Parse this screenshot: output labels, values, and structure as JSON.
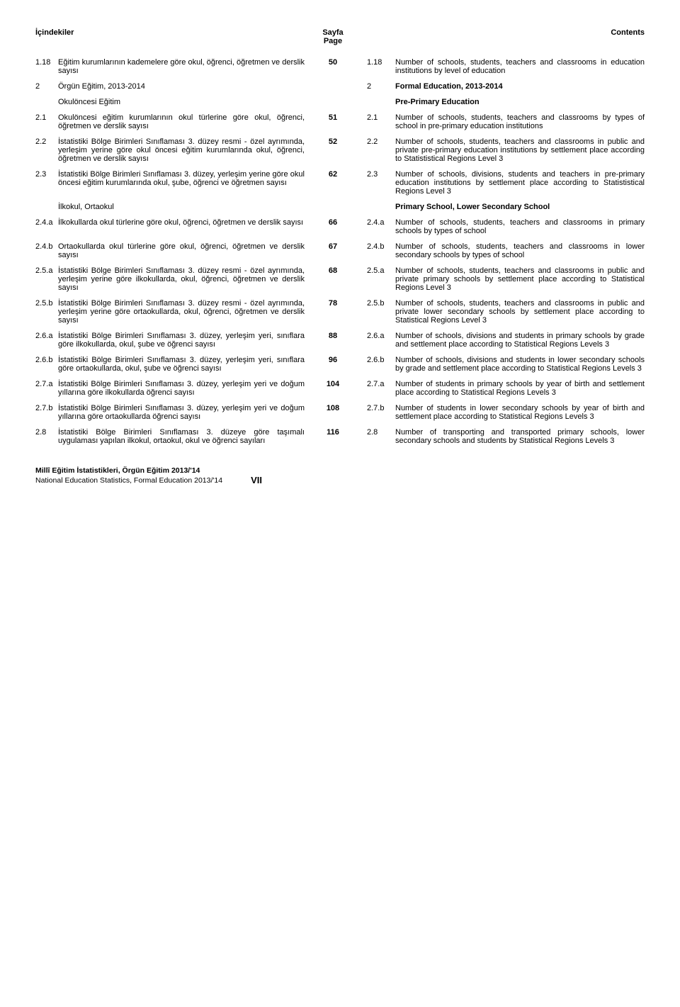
{
  "header": {
    "left": "İçindekiler",
    "mid_top": "Sayfa",
    "mid_bottom": "Page",
    "right": "Contents"
  },
  "rows": [
    {
      "ln": "1.18",
      "lt": "Eğitim kurumlarının kademelere göre okul, öğrenci, öğretmen ve derslik sayısı",
      "page": "50",
      "rn": "1.18",
      "rt": "Number of schools, students, teachers and classrooms in education institutions by level of education",
      "bold": false
    },
    {
      "ln": "2",
      "lt": "Örgün Eğitim, 2013-2014",
      "page": "",
      "rn": "2",
      "rt": "Formal Education, 2013-2014",
      "bold": true
    },
    {
      "ln": "",
      "lt": "Okulöncesi Eğitim",
      "page": "",
      "rn": "",
      "rt": "Pre-Primary Education",
      "bold": true
    },
    {
      "ln": "2.1",
      "lt": "Okulöncesi eğitim kurumlarının okul türlerine göre okul, öğrenci, öğretmen ve derslik sayısı",
      "page": "51",
      "rn": "2.1",
      "rt": "Number of schools, students, teachers and classrooms by types of school in pre-primary education institutions",
      "bold": false
    },
    {
      "ln": "2.2",
      "lt": "İstatistiki Bölge Birimleri Sınıflaması 3. düzey resmi - özel ayrımında, yerleşim yerine göre okul öncesi eğitim kurumlarında okul, öğrenci, öğretmen ve derslik sayısı",
      "page": "52",
      "rn": "2.2",
      "rt": "Number of schools, students, teachers and classrooms in public and private pre-primary education institutions by settlement place according to Statististical Regions Level 3",
      "bold": false
    },
    {
      "ln": "2.3",
      "lt": "İstatistiki Bölge Birimleri Sınıflaması 3. düzey, yerleşim yerine göre okul öncesi eğitim kurumlarında okul, şube, öğrenci ve öğretmen sayısı",
      "page": "62",
      "rn": "2.3",
      "rt": "Number of schools, divisions, students and teachers in pre-primary education institutions by settlement place according to Statististical Regions Level 3",
      "bold": false
    },
    {
      "ln": "",
      "lt": "İlkokul, Ortaokul",
      "page": "",
      "rn": "",
      "rt": "Primary School, Lower Secondary School",
      "bold": true
    },
    {
      "ln": "2.4.a",
      "lt": "İlkokullarda okul türlerine göre okul, öğrenci, öğretmen ve derslik sayısı",
      "page": "66",
      "rn": "2.4.a",
      "rt": "Number of schools, students, teachers and classrooms in primary schools by types of school",
      "bold": false
    },
    {
      "ln": "2.4.b",
      "lt": "Ortaokullarda okul türlerine göre okul, öğrenci, öğretmen ve derslik sayısı",
      "page": "67",
      "rn": "2.4.b",
      "rt": "Number of schools, students, teachers and classrooms in lower secondary schools by types of school",
      "bold": false
    },
    {
      "ln": "2.5.a",
      "lt": "İstatistiki Bölge Birimleri Sınıflaması 3. düzey resmi - özel ayrımında, yerleşim yerine göre ilkokullarda, okul, öğrenci, öğretmen ve derslik sayısı",
      "page": "68",
      "rn": "2.5.a",
      "rt": "Number of schools, students, teachers and classrooms in public and private primary schools by settlement place according to Statistical Regions Level 3",
      "bold": false
    },
    {
      "ln": "2.5.b",
      "lt": "İstatistiki Bölge Birimleri Sınıflaması 3. düzey resmi - özel ayrımında, yerleşim yerine göre ortaokullarda, okul, öğrenci, öğretmen ve derslik sayısı",
      "page": "78",
      "rn": "2.5.b",
      "rt": "Number of schools, students, teachers and classrooms in public and private lower secondary schools by settlement place according to Statistical Regions Level 3",
      "bold": false
    },
    {
      "ln": "2.6.a",
      "lt": "İstatistiki Bölge Birimleri Sınıflaması 3. düzey, yerleşim yeri, sınıflara göre ilkokullarda, okul, şube ve öğrenci sayısı",
      "page": "88",
      "rn": "2.6.a",
      "rt": "Number of schools, divisions and students in primary schools by grade and settlement place according to Statistical Regions Levels 3",
      "bold": false
    },
    {
      "ln": "2.6.b",
      "lt": "İstatistiki Bölge Birimleri Sınıflaması 3. düzey, yerleşim yeri, sınıflara göre ortaokullarda, okul, şube ve öğrenci sayısı",
      "page": "96",
      "rn": "2.6.b",
      "rt": "Number of schools, divisions and students in lower secondary schools by grade and settlement place according to Statistical Regions Levels 3",
      "bold": false
    },
    {
      "ln": "2.7.a",
      "lt": "İstatistiki Bölge Birimleri Sınıflaması 3. düzey, yerleşim yeri ve doğum yıllarına göre ilkokullarda öğrenci sayısı",
      "page": "104",
      "rn": "2.7.a",
      "rt": "Number of students in primary schools by year of birth and settlement place according to Statistical Regions Levels 3",
      "bold": false
    },
    {
      "ln": "2.7.b",
      "lt": "İstatistiki Bölge Birimleri Sınıflaması 3. düzey, yerleşim yeri ve doğum yıllarına göre ortaokullarda öğrenci sayısı",
      "page": "108",
      "rn": "2.7.b",
      "rt": "Number of students in lower secondary schools by year of birth and settlement place according to Statistical Regions Levels 3",
      "bold": false
    },
    {
      "ln": "2.8",
      "lt": "İstatistiki Bölge Birimleri Sınıflaması 3. düzeye göre taşımalı uygulaması yapılan ilkokul, ortaokul, okul ve öğrenci sayıları",
      "page": "116",
      "rn": "2.8",
      "rt": "Number of transporting and transported primary schools, lower secondary schools and students by Statistical Regions Levels 3",
      "bold": false
    }
  ],
  "footer": {
    "line1": "Millî Eğitim İstatistikleri, Örgün Eğitim 2013/'14",
    "line2": "National Education Statistics, Formal Education 2013/'14",
    "page_number": "VII"
  }
}
